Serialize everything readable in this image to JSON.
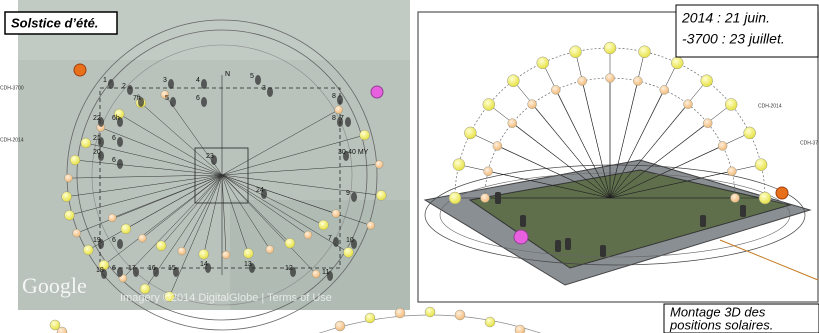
{
  "title": "Solstice d’été.",
  "dates": [
    "2014 : 21 juin.",
    "-3700 : 23 juillet."
  ],
  "caption": [
    "Montage 3D des",
    "positions solaires."
  ],
  "map": {
    "brand": "Google",
    "attribution": "Imagery ©2014 DigitalGlobe | Terms of Use",
    "north": "N",
    "curve_labels": [
      "CDH-3700",
      "CDH-2014"
    ],
    "stones": [
      "1",
      "2",
      "7ft",
      "3",
      "5",
      "4",
      "6",
      "5",
      "3",
      "22",
      "6h",
      "21",
      "6",
      "20",
      "6",
      "19",
      "6",
      "18",
      "6",
      "17",
      "16",
      "15",
      "14",
      "13",
      "12",
      "11",
      "10",
      "7",
      "9",
      "8",
      "7",
      "8",
      "30-40 MY",
      "23",
      "24"
    ]
  },
  "view3d": {
    "curve_labels": [
      "CDH-2014",
      "CDH-37"
    ]
  }
}
